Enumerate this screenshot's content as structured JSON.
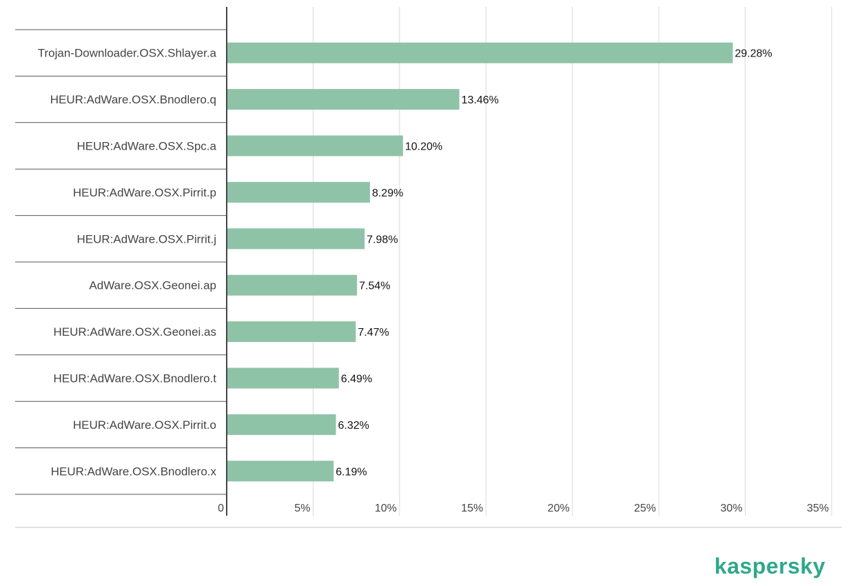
{
  "chart_data": {
    "type": "bar",
    "orientation": "horizontal",
    "categories": [
      "Trojan-Downloader.OSX.Shlayer.a",
      "HEUR:AdWare.OSX.Bnodlero.q",
      "HEUR:AdWare.OSX.Spc.a",
      "HEUR:AdWare.OSX.Pirrit.p",
      "HEUR:AdWare.OSX.Pirrit.j",
      "AdWare.OSX.Geonei.ap",
      "HEUR:AdWare.OSX.Geonei.as",
      "HEUR:AdWare.OSX.Bnodlero.t",
      "HEUR:AdWare.OSX.Pirrit.o",
      "HEUR:AdWare.OSX.Bnodlero.x"
    ],
    "values": [
      29.28,
      13.46,
      10.2,
      8.29,
      7.98,
      7.54,
      7.47,
      6.49,
      6.32,
      6.19
    ],
    "value_labels": [
      "29.28%",
      "13.46%",
      "10.20%",
      "8.29%",
      "7.98%",
      "7.54%",
      "7.47%",
      "6.49%",
      "6.32%",
      "6.19%"
    ],
    "xlim": [
      0,
      35
    ],
    "xticks": [
      0,
      5,
      10,
      15,
      20,
      25,
      30,
      35
    ],
    "xtick_labels": [
      "0",
      "5%",
      "10%",
      "15%",
      "20%",
      "25%",
      "30%",
      "35%"
    ],
    "grid": true,
    "title": "",
    "xlabel": "",
    "ylabel": "",
    "bar_color": "#8fc3a7",
    "grid_color": "#d9d9d9",
    "axis_color": "#444444"
  },
  "brand": {
    "logo_text": "kaspersky",
    "color": "#2fa88b"
  }
}
